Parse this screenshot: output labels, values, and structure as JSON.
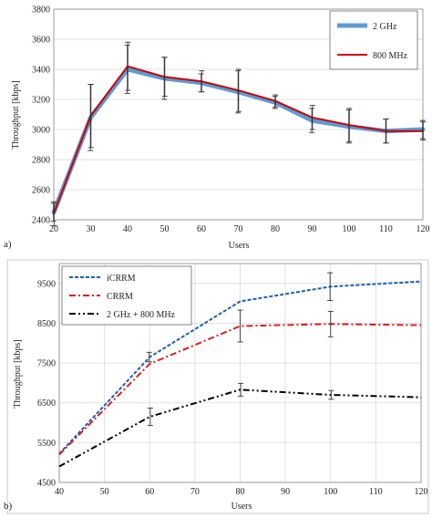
{
  "chart_data": [
    {
      "panel_label": "a)",
      "type": "line",
      "xlabel": "Users",
      "ylabel": "Throughput [kbps]",
      "xlim": [
        20,
        120
      ],
      "ylim": [
        2400,
        3800
      ],
      "x_ticks": [
        20,
        30,
        40,
        50,
        60,
        70,
        80,
        90,
        100,
        110,
        120
      ],
      "y_ticks": [
        2400,
        2600,
        2800,
        3000,
        3200,
        3400,
        3600,
        3800
      ],
      "grid": "horizontal",
      "legend_position": "top-right",
      "x": [
        20,
        30,
        40,
        50,
        60,
        70,
        80,
        90,
        100,
        110,
        120
      ],
      "series": [
        {
          "name": "2 GHz",
          "color": "#5b9bd5",
          "style": "thick-solid",
          "values": [
            2450,
            3080,
            3400,
            3340,
            3310,
            3250,
            3180,
            3060,
            3020,
            2990,
            3000
          ],
          "error": [
            60,
            220,
            160,
            140,
            60,
            140,
            40,
            80,
            110,
            80,
            60
          ]
        },
        {
          "name": "800 MHz",
          "color": "#cc0000",
          "style": "solid",
          "values": [
            2440,
            3090,
            3420,
            3350,
            3320,
            3260,
            3190,
            3080,
            3030,
            2990,
            2990
          ],
          "error": [
            80,
            210,
            160,
            130,
            70,
            140,
            40,
            80,
            110,
            80,
            60
          ]
        }
      ]
    },
    {
      "panel_label": "b)",
      "type": "line",
      "xlabel": "Users",
      "ylabel": "Throughput [kbps]",
      "xlim": [
        40,
        120
      ],
      "ylim": [
        4500,
        10000
      ],
      "x_ticks": [
        40,
        50,
        60,
        70,
        80,
        90,
        100,
        110,
        120
      ],
      "y_ticks": [
        4500,
        5500,
        6500,
        7500,
        8500,
        9500
      ],
      "grid": "both",
      "legend_position": "top-left",
      "x": [
        40,
        60,
        80,
        100,
        120
      ],
      "series": [
        {
          "name": "iCRRM",
          "color": "#1f5fb0",
          "style": "dashed",
          "values": [
            5220,
            7650,
            9050,
            9420,
            9550
          ],
          "error": [
            0,
            120,
            0,
            350,
            0
          ]
        },
        {
          "name": "CRRM",
          "color": "#d62020",
          "style": "dash-dot",
          "values": [
            5200,
            7480,
            8430,
            8480,
            8450
          ],
          "error": [
            0,
            0,
            400,
            320,
            0
          ]
        },
        {
          "name": "2 GHz + 800 MHz",
          "color": "#000000",
          "style": "dash-dot-dot",
          "values": [
            4900,
            6150,
            6830,
            6700,
            6640
          ],
          "error": [
            0,
            220,
            160,
            110,
            0
          ]
        }
      ]
    }
  ]
}
